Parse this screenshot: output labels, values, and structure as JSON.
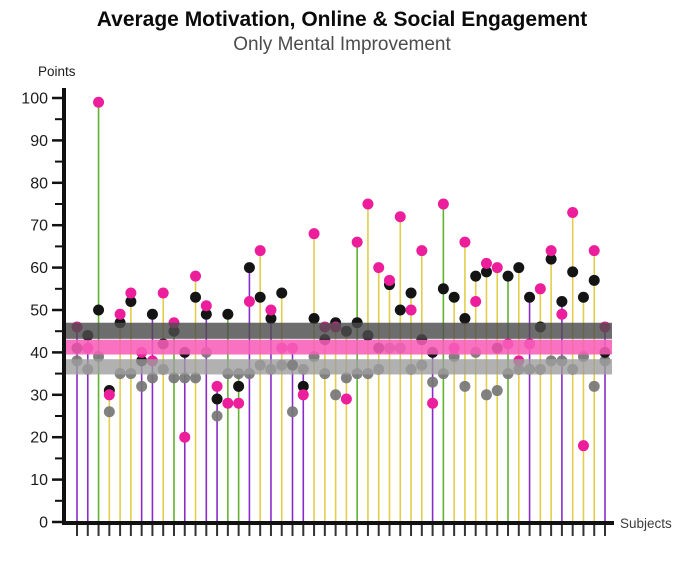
{
  "title": "Average Motivation, Online & Social Engagement",
  "subtitle": "Only Mental Improvement",
  "y_axis_label": "Points",
  "x_axis_label": "Subjects",
  "chart_data": {
    "type": "scatter",
    "variant": "lollipop-stem-plot",
    "title": "Average Motivation, Online & Social Engagement",
    "subtitle": "Only Mental Improvement",
    "xlabel": "Subjects",
    "ylabel": "Points",
    "ylim": [
      0,
      100
    ],
    "y_major_ticks": [
      0,
      10,
      20,
      30,
      40,
      50,
      60,
      70,
      80,
      90,
      100
    ],
    "y_minor_ticks": [
      5,
      15,
      25,
      35,
      45,
      55,
      65,
      75,
      85,
      95
    ],
    "grid": false,
    "legend": "none",
    "subjects_count": 50,
    "point_color_magenta": "#EC1E9B",
    "point_color_black": "#141414",
    "point_color_gray": "#767676",
    "stem_palette": {
      "yellow": "#E2CE4B",
      "green": "#61B32E",
      "purple": "#8A2BC9"
    },
    "stem_colors_by_subject": [
      "purple",
      "purple",
      "green",
      "yellow",
      "yellow",
      "yellow",
      "purple",
      "purple",
      "yellow",
      "green",
      "purple",
      "yellow",
      "purple",
      "purple",
      "green",
      "green",
      "purple",
      "yellow",
      "purple",
      "yellow",
      "purple",
      "purple",
      "yellow",
      "yellow",
      "yellow",
      "yellow",
      "green",
      "yellow",
      "yellow",
      "yellow",
      "yellow",
      "yellow",
      "yellow",
      "purple",
      "green",
      "yellow",
      "yellow",
      "yellow",
      "yellow",
      "yellow",
      "green",
      "yellow",
      "purple",
      "yellow",
      "yellow",
      "purple",
      "yellow",
      "yellow",
      "yellow",
      "purple"
    ],
    "series": [
      {
        "name": "magenta-points",
        "color": "#EC1E9B",
        "values": [
          46,
          41,
          99,
          30,
          49,
          54,
          40,
          38,
          54,
          47,
          20,
          58,
          51,
          32,
          28,
          28,
          52,
          64,
          50,
          41,
          41,
          30,
          68,
          46,
          46,
          29,
          66,
          75,
          60,
          57,
          72,
          50,
          64,
          28,
          75,
          41,
          66,
          52,
          61,
          60,
          42,
          38,
          42,
          55,
          64,
          49,
          73,
          18,
          64,
          46
        ]
      },
      {
        "name": "black-points",
        "color": "#141414",
        "values": [
          41,
          44,
          50,
          31,
          47,
          52,
          38,
          49,
          42,
          45,
          40,
          53,
          49,
          29,
          49,
          32,
          60,
          53,
          48,
          54,
          37,
          32,
          48,
          43,
          47,
          45,
          47,
          44,
          41,
          56,
          50,
          54,
          43,
          40,
          55,
          53,
          48,
          58,
          59,
          41,
          58,
          60,
          53,
          46,
          62,
          52,
          59,
          53,
          57,
          40
        ]
      },
      {
        "name": "gray-points",
        "color": "#767676",
        "values": [
          38,
          36,
          39,
          26,
          35,
          35,
          32,
          34,
          36,
          34,
          34,
          34,
          40,
          25,
          35,
          35,
          35,
          37,
          36,
          37,
          26,
          36,
          39,
          35,
          30,
          34,
          35,
          35,
          36,
          41,
          41,
          36,
          37,
          33,
          35,
          39,
          32,
          40,
          30,
          31,
          35,
          36,
          36,
          36,
          38,
          38,
          36,
          39,
          32,
          38
        ]
      }
    ],
    "horizontal_bands": [
      {
        "name": "upper-mean-band",
        "color": "#4D4D4D",
        "value_from": 43.2,
        "value_to": 47.0,
        "opacity": 0.82
      },
      {
        "name": "middle-mean-band",
        "color": "#F75FB8",
        "value_from": 39.5,
        "value_to": 43.0,
        "opacity": 0.88
      },
      {
        "name": "lower-mean-band",
        "color": "#9E9E9E",
        "value_from": 34.8,
        "value_to": 38.4,
        "opacity": 0.8
      }
    ]
  }
}
